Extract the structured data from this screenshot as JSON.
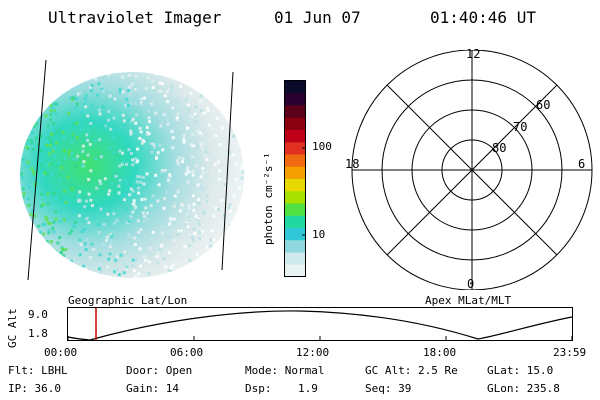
{
  "header": {
    "instrument": "Ultraviolet Imager",
    "date": "01 Jun 07",
    "time": "01:40:46 UT"
  },
  "colorbar": {
    "label": "photon cm⁻²s⁻¹",
    "tick_labels": [
      "100",
      "10"
    ],
    "colors": [
      "#0a0a2a",
      "#2a0030",
      "#5a0018",
      "#8a0010",
      "#c00018",
      "#e03020",
      "#f06a10",
      "#f4a000",
      "#e8d800",
      "#a8e000",
      "#50e040",
      "#20d8a0",
      "#30c8d8",
      "#90d8e0",
      "#d0eaec",
      "#e8f2f2"
    ]
  },
  "polar": {
    "mlt_labels": [
      "12",
      "18",
      "6",
      "0"
    ],
    "lat_labels": [
      "60",
      "70",
      "80"
    ]
  },
  "timeline": {
    "left_label": "Geographic Lat/Lon",
    "right_label": "Apex MLat/MLT",
    "y_axis_label": "GC Alt",
    "y_ticks": [
      "9.0",
      "1.8"
    ],
    "x_ticks": [
      "00:00",
      "06:00",
      "12:00",
      "18:00",
      "23:59"
    ],
    "marker_color": "#cc0000"
  },
  "info": {
    "row1": {
      "flt": "Flt: LBHL",
      "door": "Door: Open",
      "mode": "Mode: Normal",
      "gcalt": "GC Alt: 2.5 Re",
      "glat": "GLat: 15.0"
    },
    "row2": {
      "ip": "IP: 36.0",
      "gain": "Gain: 14",
      "dsp": "Dsp:    1.9",
      "seq": "Seq: 39",
      "glon": "GLon: 235.8"
    }
  }
}
